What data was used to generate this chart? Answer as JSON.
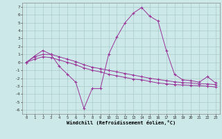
{
  "xlabel": "Windchill (Refroidissement éolien,°C)",
  "background_color": "#cce8e8",
  "grid_color": "#aacccc",
  "line_color": "#993399",
  "ylim": [
    -6.5,
    7.5
  ],
  "xlim": [
    -0.5,
    23.5
  ],
  "yticks": [
    -6,
    -5,
    -4,
    -3,
    -2,
    -1,
    0,
    1,
    2,
    3,
    4,
    5,
    6,
    7
  ],
  "xticks": [
    0,
    1,
    2,
    3,
    4,
    5,
    6,
    7,
    8,
    9,
    10,
    11,
    12,
    13,
    14,
    15,
    16,
    17,
    18,
    19,
    20,
    21,
    22,
    23
  ],
  "line1_x": [
    0,
    1,
    2,
    3,
    4,
    5,
    6,
    7,
    8,
    9,
    10,
    11,
    12,
    13,
    14,
    15,
    16,
    17,
    18,
    19,
    20,
    21,
    22,
    23
  ],
  "line1_y": [
    0.0,
    0.8,
    1.5,
    1.0,
    -0.5,
    -1.5,
    -2.5,
    -5.8,
    -3.3,
    -3.3,
    1.0,
    3.2,
    5.0,
    6.2,
    6.9,
    5.8,
    5.2,
    1.5,
    -1.5,
    -2.2,
    -2.3,
    -2.5,
    -1.8,
    -2.6
  ],
  "line2_x": [
    0,
    1,
    2,
    3,
    4,
    5,
    6,
    7,
    8,
    9,
    10,
    11,
    12,
    13,
    14,
    15,
    16,
    17,
    18,
    19,
    20,
    21,
    22,
    23
  ],
  "line2_y": [
    0.0,
    0.7,
    1.0,
    1.0,
    0.7,
    0.4,
    0.1,
    -0.3,
    -0.6,
    -0.8,
    -1.0,
    -1.2,
    -1.4,
    -1.6,
    -1.8,
    -2.0,
    -2.15,
    -2.3,
    -2.45,
    -2.55,
    -2.6,
    -2.7,
    -2.72,
    -2.8
  ],
  "line3_x": [
    0,
    1,
    2,
    3,
    4,
    5,
    6,
    7,
    8,
    9,
    10,
    11,
    12,
    13,
    14,
    15,
    16,
    17,
    18,
    19,
    20,
    21,
    22,
    23
  ],
  "line3_y": [
    0.0,
    0.4,
    0.7,
    0.6,
    0.3,
    0.0,
    -0.3,
    -0.7,
    -1.0,
    -1.2,
    -1.5,
    -1.7,
    -1.9,
    -2.1,
    -2.2,
    -2.4,
    -2.6,
    -2.7,
    -2.8,
    -2.85,
    -2.9,
    -2.95,
    -3.0,
    -3.1
  ]
}
